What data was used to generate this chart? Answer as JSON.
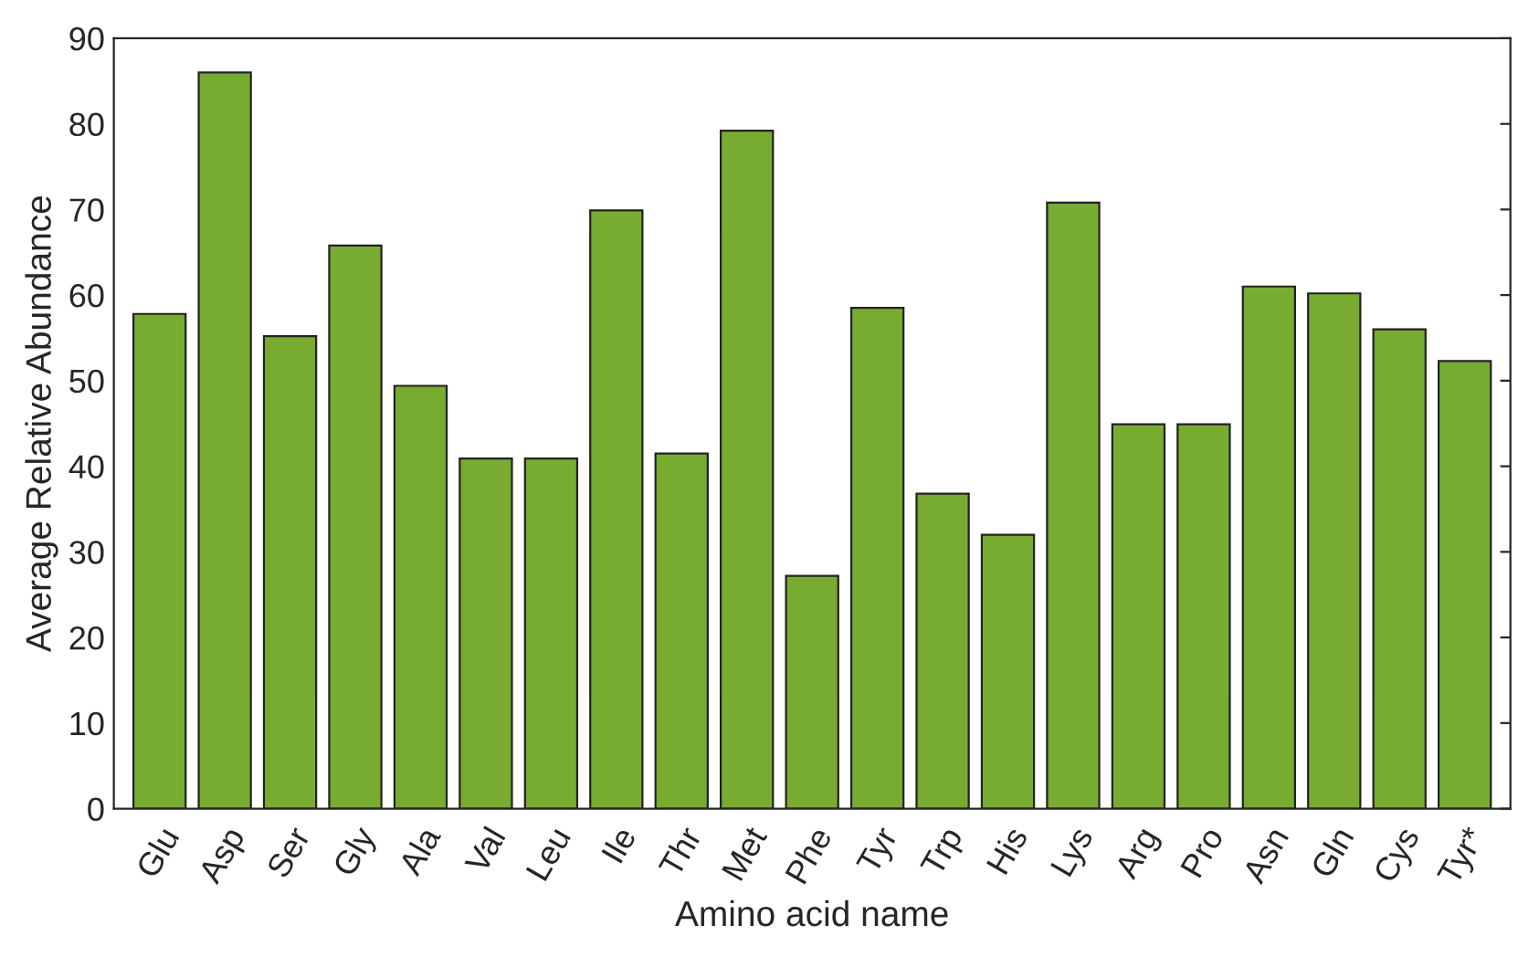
{
  "chart_data": {
    "type": "bar",
    "xlabel": "Amino acid name",
    "ylabel": "Average Relative Abundance",
    "categories": [
      "Glu",
      "Asp",
      "Ser",
      "Gly",
      "Ala",
      "Val",
      "Leu",
      "Ile",
      "Thr",
      "Met",
      "Phe",
      "Tyr",
      "Trp",
      "His",
      "Lys",
      "Arg",
      "Pro",
      "Asn",
      "Gln",
      "Cys",
      "Tyr*"
    ],
    "values": [
      57.8,
      86,
      55.2,
      65.8,
      49.4,
      40.9,
      40.9,
      69.9,
      41.5,
      79.2,
      27.2,
      58.5,
      36.8,
      32,
      70.8,
      44.9,
      44.9,
      61,
      60.2,
      56,
      52.3
    ],
    "color": "#77ac30",
    "ylim": [
      0,
      90
    ],
    "yticks": [
      0,
      10,
      20,
      30,
      40,
      50,
      60,
      70,
      80,
      90
    ],
    "grid": false
  }
}
